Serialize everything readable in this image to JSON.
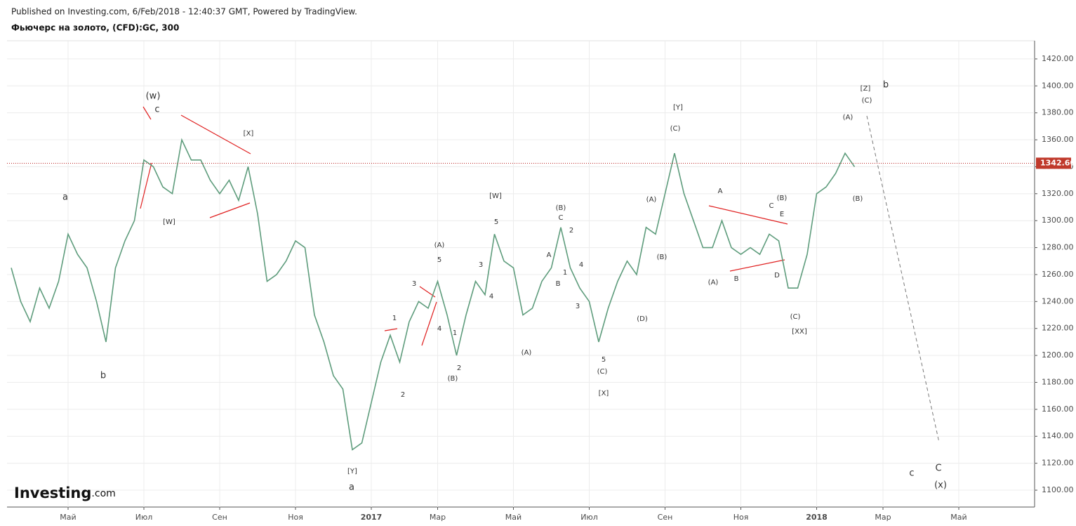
{
  "header": {
    "published": "Published on Investing.com, 6/Feb/2018 - 12:40:37 GMT, Powered by TradingView.",
    "logo": "Investing",
    "logo_suffix": ".com"
  },
  "chart_data": {
    "type": "line",
    "title": "Фьючерс на золото, (CFD):GC, 300",
    "color": "#5e9c7c",
    "grid": true,
    "categories": [
      null,
      null,
      null,
      null,
      null,
      null,
      "Май",
      null,
      null,
      null,
      null,
      null,
      null,
      null,
      "Июл",
      null,
      null,
      null,
      null,
      null,
      null,
      null,
      "Сен",
      null,
      null,
      null,
      null,
      null,
      null,
      null,
      "Ноя",
      null,
      null,
      null,
      null,
      null,
      null,
      null,
      "2017",
      null,
      null,
      null,
      null,
      null,
      null,
      "Мар",
      null,
      null,
      null,
      null,
      null,
      null,
      null,
      "Май",
      null,
      null,
      null,
      null,
      null,
      null,
      null,
      "Июл",
      null,
      null,
      null,
      null,
      null,
      null,
      null,
      "Сен",
      null,
      null,
      null,
      null,
      null,
      null,
      null,
      "Ноя",
      null,
      null,
      null,
      null,
      null,
      null,
      null,
      "2018",
      null,
      null,
      null,
      null,
      null,
      null,
      "Мар",
      null,
      null,
      null,
      null,
      null,
      null,
      null,
      "Май",
      null,
      null,
      null,
      null,
      null,
      null,
      null
    ],
    "values": [
      1265,
      1240,
      1225,
      1250,
      1235,
      1255,
      1290,
      1275,
      1265,
      1240,
      1210,
      1265,
      1285,
      1300,
      1345,
      1340,
      1325,
      1320,
      1360,
      1345,
      1345,
      1330,
      1320,
      1330,
      1315,
      1340,
      1305,
      1255,
      1260,
      1270,
      1285,
      1280,
      1230,
      1210,
      1185,
      1175,
      1130,
      1135,
      1165,
      1195,
      1215,
      1195,
      1225,
      1240,
      1235,
      1255,
      1230,
      1200,
      1230,
      1255,
      1245,
      1290,
      1270,
      1265,
      1230,
      1235,
      1255,
      1265,
      1295,
      1265,
      1250,
      1240,
      1210,
      1235,
      1255,
      1270,
      1260,
      1295,
      1290,
      1320,
      1350,
      1320,
      1300,
      1280,
      1280,
      1300,
      1280,
      1275,
      1280,
      1275,
      1290,
      1285,
      1250,
      1250,
      1275,
      1320,
      1325,
      1335,
      1350,
      1340,
      null,
      null,
      null,
      null,
      null,
      null,
      null,
      null,
      null,
      null,
      null,
      null,
      null,
      null,
      null,
      null,
      null,
      null
    ],
    "ylim": [
      1087.5,
      1433.5
    ],
    "yticks": [
      {
        "value": 1100,
        "label": "1100.00"
      },
      {
        "value": 1120,
        "label": "1120.00"
      },
      {
        "value": 1140,
        "label": "1140.00"
      },
      {
        "value": 1160,
        "label": "1160.00"
      },
      {
        "value": 1180,
        "label": "1180.00"
      },
      {
        "value": 1200,
        "label": "1200.00"
      },
      {
        "value": 1220,
        "label": "1220.00"
      },
      {
        "value": 1240,
        "label": "1240.00"
      },
      {
        "value": 1260,
        "label": "1260.00"
      },
      {
        "value": 1280,
        "label": "1280.00"
      },
      {
        "value": 1300,
        "label": "1300.00"
      },
      {
        "value": 1320,
        "label": "1320.00"
      },
      {
        "value": 1340,
        "label": "1340.00"
      },
      {
        "value": 1360,
        "label": "1360.00"
      },
      {
        "value": 1380,
        "label": "1380.00"
      },
      {
        "value": 1400,
        "label": "1400.00"
      },
      {
        "value": 1420,
        "label": "1420.00"
      }
    ],
    "last_price": {
      "value": 1342.6,
      "label": "1342.60"
    },
    "annotations": [
      "a",
      "b",
      "(w)",
      "c",
      "[W]",
      "[X]",
      "[Y]",
      "a",
      "1",
      "2",
      "3",
      "4",
      "5",
      "(A)",
      "1",
      "2",
      "(B)",
      "3",
      "4",
      "[W]",
      "5",
      "(A)",
      "A",
      "B",
      "1",
      "C",
      "(B)",
      "2",
      "4",
      "3",
      "5",
      "(C)",
      "[X]",
      "(D)",
      "(B)",
      "(A)",
      "[Y]",
      "(C)",
      "A",
      "(A)",
      "B",
      "(B)",
      "C",
      "E",
      "D",
      "(C)",
      "[XX]",
      "(A)",
      "(B)",
      "[Z]",
      "(C)",
      "b",
      "c",
      "C",
      "(x)"
    ]
  }
}
